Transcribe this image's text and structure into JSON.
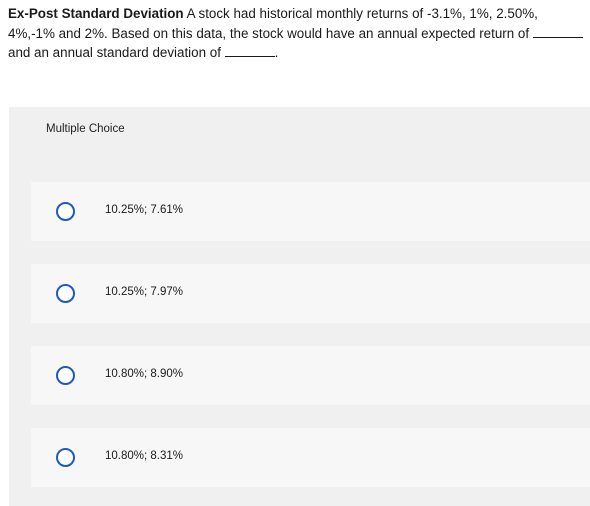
{
  "question": {
    "title": "Ex-Post Standard Deviation",
    "text_part1": " A stock had historical monthly returns of -3.1%, 1%, 2.50%, 4%,-1% and 2%. Based on this data, the stock would have an annual expected return of ",
    "text_part2": " and an annual standard deviation of ",
    "text_end": "."
  },
  "multiple_choice": {
    "label": "Multiple Choice",
    "options": [
      {
        "label": "10.25%; 7.61%"
      },
      {
        "label": "10.25%; 7.97%"
      },
      {
        "label": "10.80%; 8.90%"
      },
      {
        "label": "10.80%; 8.31%"
      }
    ]
  }
}
